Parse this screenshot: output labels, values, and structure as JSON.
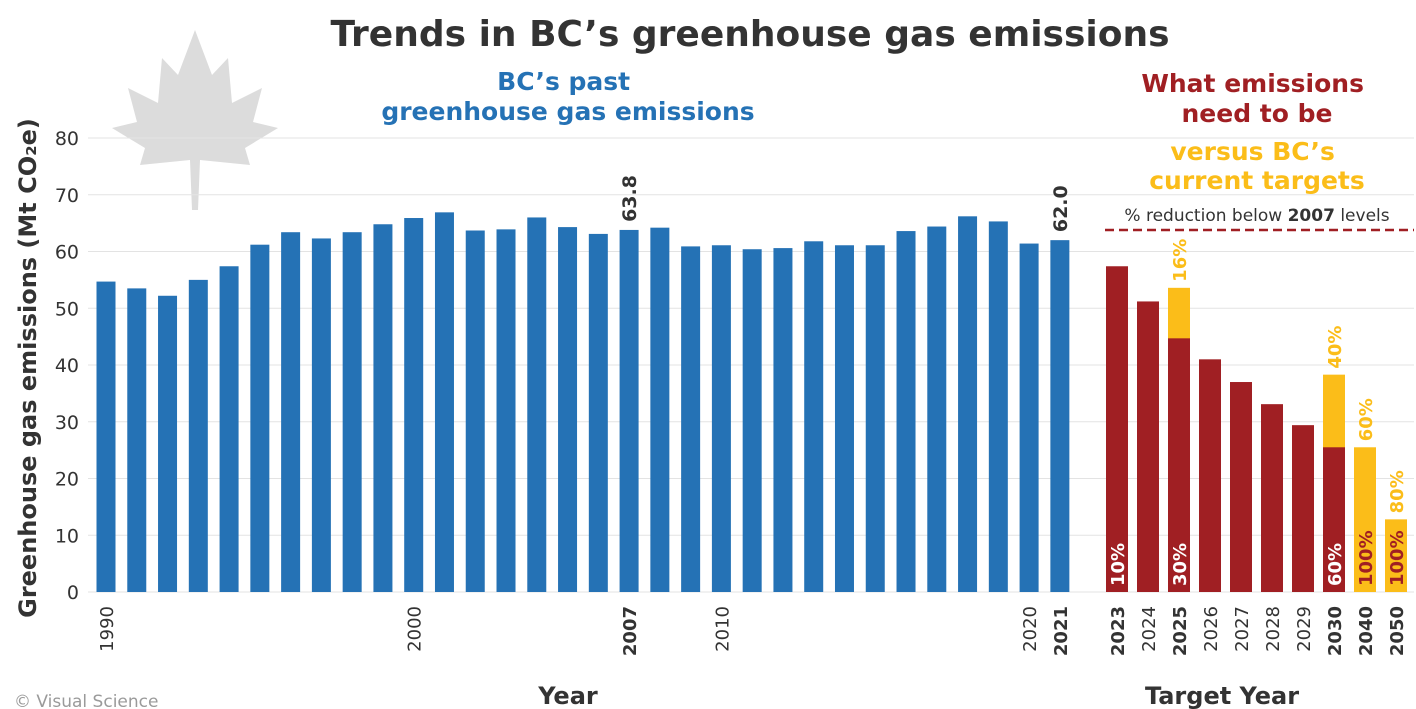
{
  "title": "Trends in BC’s greenhouse gas emissions",
  "subtitle_past": [
    "BC’s past",
    "greenhouse gas emissions"
  ],
  "subtitle_need": [
    "What emissions",
    "need to be"
  ],
  "subtitle_targets": [
    "versus BC’s",
    "current targets"
  ],
  "reduction_note": {
    "prefix": "% reduction below ",
    "year": "2007",
    "suffix": " levels"
  },
  "credit": "© Visual Science",
  "colors": {
    "past": "#2572b5",
    "needed": "#a01f23",
    "target": "#fbbd19",
    "subtitle_past": "#2572b5",
    "subtitle_need": "#a01f23",
    "subtitle_targets": "#fbbd19",
    "text": "#333333",
    "grid": "#e3e3e3",
    "leaf": "#dcdcdc"
  },
  "icons": {
    "leaf": "maple-leaf-icon"
  },
  "chart_data": {
    "type": "bar",
    "ylabel": "Greenhouse gas emissions (Mt CO₂e)",
    "xlabel_past": "Year",
    "xlabel_target": "Target Year",
    "ylim": [
      0,
      80
    ],
    "yticks": [
      0,
      10,
      20,
      30,
      40,
      50,
      60,
      70,
      80
    ],
    "grid": true,
    "past": {
      "years": [
        1990,
        1991,
        1992,
        1993,
        1994,
        1995,
        1996,
        1997,
        1998,
        1999,
        2000,
        2001,
        2002,
        2003,
        2004,
        2005,
        2006,
        2007,
        2008,
        2009,
        2010,
        2011,
        2012,
        2013,
        2014,
        2015,
        2016,
        2017,
        2018,
        2019,
        2020,
        2021
      ],
      "values": [
        54.7,
        53.5,
        52.2,
        55.0,
        57.4,
        61.2,
        63.4,
        62.3,
        63.4,
        64.8,
        65.9,
        66.9,
        63.7,
        63.9,
        66.0,
        64.3,
        63.1,
        63.8,
        64.2,
        60.9,
        61.1,
        60.4,
        60.6,
        61.8,
        61.1,
        61.1,
        63.6,
        64.4,
        66.2,
        65.3,
        61.4,
        62.0
      ],
      "tick_labels": [
        "1990",
        "2000",
        "2007",
        "2010",
        "2020",
        "2021"
      ],
      "bold_ticks": [
        "2007",
        "2021"
      ],
      "value_labels": [
        {
          "year": 2007,
          "label": "63.8"
        },
        {
          "year": 2021,
          "label": "62.0"
        }
      ]
    },
    "target": {
      "years": [
        "2023",
        "2024",
        "2025",
        "2026",
        "2027",
        "2028",
        "2029",
        "2030",
        "2040",
        "2050"
      ],
      "bold_years": [
        "2023",
        "2025",
        "2030",
        "2040",
        "2050"
      ],
      "needed_values": [
        57.4,
        51.2,
        44.7,
        41.0,
        37.0,
        33.1,
        29.4,
        25.5,
        0,
        0
      ],
      "target_values": [
        null,
        null,
        53.6,
        null,
        null,
        null,
        null,
        38.3,
        25.5,
        12.8
      ],
      "needed_labels": {
        "2023": "10%",
        "2025": "30%",
        "2030": "60%",
        "2040": "100%",
        "2050": "100%"
      },
      "target_labels": {
        "2025": "16%",
        "2030": "40%",
        "2040": "60%",
        "2050": "80%"
      }
    }
  }
}
